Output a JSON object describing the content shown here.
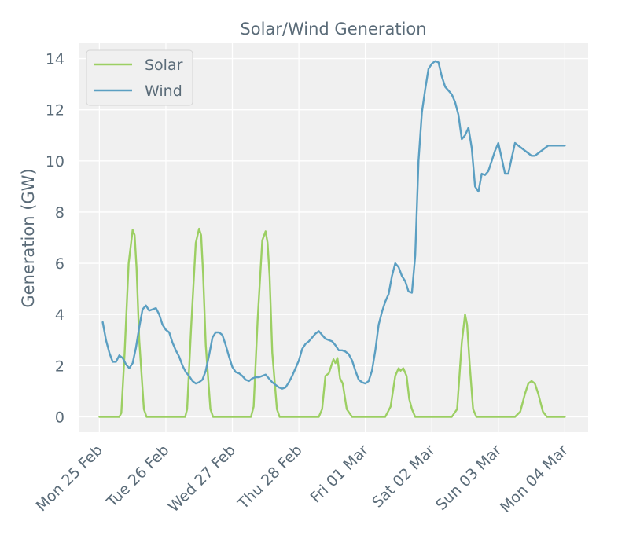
{
  "chart_data": {
    "type": "line",
    "title": "Solar/Wind Generation",
    "xlabel": "",
    "ylabel": "Generation (GW)",
    "ylim": [
      -0.6,
      14.6
    ],
    "xlim": [
      -0.3,
      7.35
    ],
    "grid": true,
    "legend_position": "top-left",
    "y_ticks": [
      0,
      2,
      4,
      6,
      8,
      10,
      12,
      14
    ],
    "x_ticks": [
      {
        "value": 0,
        "label": "Mon 25 Feb"
      },
      {
        "value": 1,
        "label": "Tue 26 Feb"
      },
      {
        "value": 2,
        "label": "Wed 27 Feb"
      },
      {
        "value": 3,
        "label": "Thu 28 Feb"
      },
      {
        "value": 4,
        "label": "Fri 01 Mar"
      },
      {
        "value": 5,
        "label": "Sat 02 Mar"
      },
      {
        "value": 6,
        "label": "Sun 03 Mar"
      },
      {
        "value": 7,
        "label": "Mon 04 Mar"
      }
    ],
    "series": [
      {
        "name": "Solar",
        "color": "#9ccf63",
        "x": [
          0,
          0.3,
          0.33,
          0.38,
          0.44,
          0.5,
          0.53,
          0.56,
          0.6,
          0.67,
          0.71,
          0.74,
          1.0,
          1.29,
          1.32,
          1.38,
          1.45,
          1.5,
          1.53,
          1.56,
          1.6,
          1.67,
          1.71,
          1.74,
          2.0,
          2.28,
          2.32,
          2.38,
          2.45,
          2.5,
          2.53,
          2.56,
          2.6,
          2.67,
          2.71,
          2.74,
          3.0,
          3.3,
          3.35,
          3.4,
          3.45,
          3.52,
          3.55,
          3.58,
          3.62,
          3.66,
          3.72,
          3.8,
          4.0,
          4.3,
          4.38,
          4.45,
          4.5,
          4.53,
          4.57,
          4.62,
          4.66,
          4.7,
          4.75,
          4.8,
          5.0,
          5.3,
          5.38,
          5.45,
          5.5,
          5.53,
          5.57,
          5.62,
          5.67,
          5.72,
          6.0,
          6.25,
          6.33,
          6.4,
          6.45,
          6.5,
          6.55,
          6.6,
          6.67,
          6.73,
          6.9,
          7.0
        ],
        "values": [
          0,
          0,
          0.15,
          2.5,
          6.0,
          7.3,
          7.1,
          5.8,
          3.0,
          0.3,
          0,
          0,
          0,
          0,
          0.3,
          3.5,
          6.8,
          7.35,
          7.1,
          5.6,
          2.8,
          0.3,
          0,
          0,
          0,
          0,
          0.4,
          3.8,
          6.9,
          7.25,
          6.8,
          5.5,
          2.5,
          0.3,
          0,
          0,
          0,
          0,
          0.3,
          1.6,
          1.7,
          2.25,
          2.1,
          2.3,
          1.5,
          1.3,
          0.3,
          0,
          0,
          0,
          0.4,
          1.6,
          1.9,
          1.8,
          1.9,
          1.6,
          0.7,
          0.3,
          0,
          0,
          0,
          0,
          0.3,
          2.9,
          4.0,
          3.6,
          2.0,
          0.3,
          0,
          0,
          0,
          0,
          0.2,
          0.9,
          1.3,
          1.4,
          1.3,
          0.9,
          0.2,
          0,
          0,
          0
        ]
      },
      {
        "name": "Wind",
        "color": "#5b9fc2",
        "x": [
          0.05,
          0.1,
          0.15,
          0.2,
          0.25,
          0.3,
          0.35,
          0.4,
          0.45,
          0.5,
          0.55,
          0.6,
          0.65,
          0.7,
          0.75,
          0.8,
          0.85,
          0.9,
          0.95,
          1.0,
          1.05,
          1.1,
          1.15,
          1.2,
          1.25,
          1.3,
          1.35,
          1.4,
          1.45,
          1.5,
          1.55,
          1.6,
          1.65,
          1.7,
          1.75,
          1.8,
          1.85,
          1.9,
          1.95,
          2.0,
          2.05,
          2.1,
          2.15,
          2.2,
          2.25,
          2.3,
          2.35,
          2.4,
          2.45,
          2.5,
          2.55,
          2.6,
          2.65,
          2.7,
          2.75,
          2.8,
          2.85,
          2.9,
          2.95,
          3.0,
          3.05,
          3.1,
          3.15,
          3.2,
          3.25,
          3.3,
          3.35,
          3.4,
          3.45,
          3.5,
          3.55,
          3.6,
          3.65,
          3.7,
          3.75,
          3.8,
          3.85,
          3.9,
          3.95,
          4.0,
          4.05,
          4.1,
          4.15,
          4.2,
          4.25,
          4.3,
          4.35,
          4.4,
          4.45,
          4.5,
          4.55,
          4.6,
          4.65,
          4.7,
          4.75,
          4.8,
          4.85,
          4.9,
          4.95,
          5.0,
          5.05,
          5.1,
          5.15,
          5.2,
          5.25,
          5.3,
          5.35,
          5.4,
          5.45,
          5.5,
          5.55,
          5.6,
          5.65,
          5.7,
          5.75,
          5.8,
          5.85,
          5.9,
          5.95,
          6.0,
          6.05,
          6.1,
          6.15,
          6.2,
          6.25,
          6.3,
          6.35,
          6.4,
          6.45,
          6.5,
          6.55,
          6.6,
          6.65,
          6.7,
          6.75,
          6.8,
          6.85,
          6.9,
          6.95,
          7.0
        ],
        "values": [
          3.7,
          3.0,
          2.5,
          2.15,
          2.15,
          2.4,
          2.3,
          2.05,
          1.9,
          2.1,
          2.7,
          3.5,
          4.2,
          4.35,
          4.15,
          4.2,
          4.25,
          4.0,
          3.6,
          3.4,
          3.3,
          2.9,
          2.6,
          2.35,
          2.0,
          1.75,
          1.6,
          1.4,
          1.3,
          1.35,
          1.45,
          1.8,
          2.4,
          3.1,
          3.3,
          3.3,
          3.2,
          2.8,
          2.35,
          1.95,
          1.75,
          1.7,
          1.6,
          1.45,
          1.4,
          1.5,
          1.55,
          1.55,
          1.6,
          1.65,
          1.5,
          1.35,
          1.25,
          1.15,
          1.1,
          1.15,
          1.35,
          1.6,
          1.9,
          2.2,
          2.65,
          2.85,
          2.95,
          3.1,
          3.25,
          3.35,
          3.2,
          3.05,
          3.0,
          2.95,
          2.8,
          2.6,
          2.6,
          2.55,
          2.45,
          2.2,
          1.8,
          1.45,
          1.35,
          1.3,
          1.4,
          1.8,
          2.6,
          3.6,
          4.1,
          4.5,
          4.8,
          5.5,
          6.0,
          5.85,
          5.5,
          5.3,
          4.9,
          4.85,
          6.3,
          10.0,
          11.9,
          12.8,
          13.6,
          13.8,
          13.9,
          13.85,
          13.3,
          12.9,
          12.75,
          12.6,
          12.3,
          11.8,
          10.85,
          11.0,
          11.3,
          10.5,
          9.0,
          8.8,
          9.5,
          9.45,
          9.6,
          10.0,
          10.4,
          10.7,
          10.1,
          9.5,
          9.5,
          10.1,
          10.7,
          10.6,
          10.5,
          10.4,
          10.3,
          10.2,
          10.2,
          10.3,
          10.4,
          10.5,
          10.6,
          10.6,
          10.6,
          10.6,
          10.6,
          10.6
        ]
      }
    ]
  }
}
